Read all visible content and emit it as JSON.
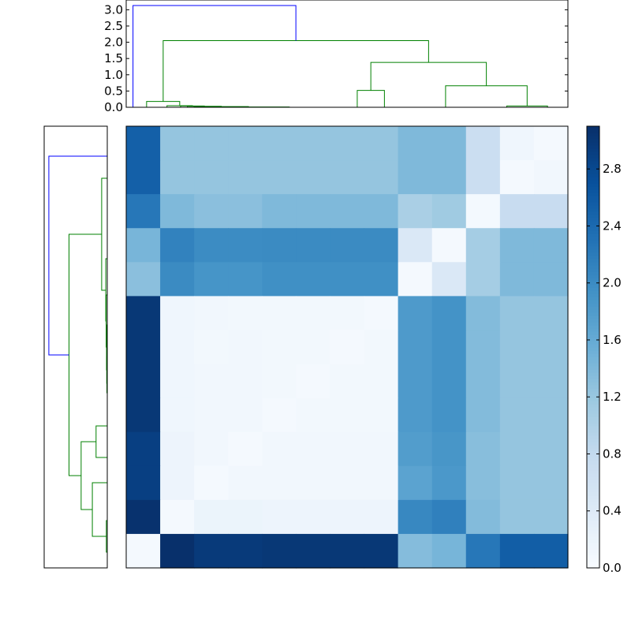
{
  "chart_data": [
    {
      "type": "heatmap",
      "title": "",
      "xlabel": "",
      "ylabel": "",
      "rows": 13,
      "cols": 13,
      "values": [
        [
          2.53,
          1.23,
          1.23,
          1.23,
          1.23,
          1.23,
          1.23,
          1.23,
          1.4,
          1.4,
          0.7,
          0.12,
          0.05
        ],
        [
          2.53,
          1.23,
          1.23,
          1.23,
          1.23,
          1.23,
          1.23,
          1.23,
          1.4,
          1.4,
          0.7,
          0.05,
          0.1
        ],
        [
          2.25,
          1.4,
          1.31,
          1.31,
          1.4,
          1.4,
          1.4,
          1.4,
          1.05,
          1.14,
          0.06,
          0.75,
          0.75
        ],
        [
          1.45,
          2.12,
          2.01,
          2.01,
          2.02,
          2.02,
          2.02,
          2.02,
          0.45,
          0.05,
          1.09,
          1.4,
          1.4
        ],
        [
          1.31,
          2.02,
          1.9,
          1.9,
          1.96,
          1.96,
          1.96,
          1.96,
          0.05,
          0.45,
          1.09,
          1.4,
          1.4
        ],
        [
          3.01,
          0.12,
          0.1,
          0.08,
          0.08,
          0.08,
          0.08,
          0.04,
          1.82,
          1.92,
          1.37,
          1.23,
          1.23
        ],
        [
          3.01,
          0.12,
          0.08,
          0.1,
          0.08,
          0.08,
          0.04,
          0.08,
          1.82,
          1.92,
          1.37,
          1.23,
          1.23
        ],
        [
          3.01,
          0.12,
          0.1,
          0.1,
          0.08,
          0.04,
          0.08,
          0.08,
          1.82,
          1.92,
          1.37,
          1.23,
          1.23
        ],
        [
          3.01,
          0.12,
          0.1,
          0.1,
          0.04,
          0.08,
          0.08,
          0.08,
          1.82,
          1.92,
          1.37,
          1.23,
          1.23
        ],
        [
          2.92,
          0.16,
          0.1,
          0.04,
          0.1,
          0.1,
          0.1,
          0.1,
          1.79,
          1.88,
          1.33,
          1.23,
          1.23
        ],
        [
          2.92,
          0.16,
          0.04,
          0.1,
          0.1,
          0.1,
          0.1,
          0.1,
          1.7,
          1.85,
          1.33,
          1.23,
          1.23
        ],
        [
          3.08,
          0.04,
          0.18,
          0.18,
          0.16,
          0.16,
          0.16,
          0.16,
          2.05,
          2.15,
          1.37,
          1.23,
          1.23
        ],
        [
          0.04,
          3.1,
          2.98,
          2.98,
          3.01,
          3.01,
          3.01,
          3.01,
          1.35,
          1.46,
          2.25,
          2.55,
          2.55
        ]
      ],
      "colorbar": {
        "colormap": "Blues",
        "vmin": 0.0,
        "vmax": 3.1,
        "ticks": [
          "0.0",
          "0.4",
          "0.8",
          "1.2",
          "1.6",
          "2.0",
          "2.4",
          "2.8"
        ]
      }
    },
    {
      "type": "dendrogram",
      "orientation": "top",
      "title": "",
      "ylim": [
        0,
        3.3
      ],
      "yticks": [
        "0.0",
        "0.5",
        "1.0",
        "1.5",
        "2.0",
        "2.5",
        "3.0"
      ],
      "links": [
        {
          "xa": 12.0,
          "xb": 24.0,
          "ha": 0,
          "hb": 0,
          "h": 0.01,
          "color": "#008000"
        },
        {
          "xa": 10.0,
          "xb": 18.0,
          "ha": 0,
          "hb": 0.01,
          "h": 0.02,
          "color": "#008000"
        },
        {
          "xa": 9.0,
          "xb": 14.0,
          "ha": 0,
          "hb": 0.02,
          "h": 0.03,
          "color": "#008000"
        },
        {
          "xa": 8.0,
          "xb": 11.5,
          "ha": 0,
          "hb": 0.03,
          "h": 0.04,
          "color": "#008000"
        },
        {
          "xa": 6.0,
          "xb": 9.75,
          "ha": 0,
          "hb": 0.04,
          "h": 0.05,
          "color": "#008000"
        },
        {
          "xa": 3.0,
          "xb": 7.875,
          "ha": 0,
          "hb": 0.05,
          "h": 0.18,
          "color": "#008000"
        },
        {
          "xa": 56.0,
          "xb": 62.0,
          "ha": 0,
          "hb": 0,
          "h": 0.04,
          "color": "#008000"
        },
        {
          "xa": 47.0,
          "xb": 59.0,
          "ha": 0,
          "hb": 0.04,
          "h": 0.66,
          "color": "#008000"
        },
        {
          "xa": 34.0,
          "xb": 38.0,
          "ha": 0,
          "hb": 0,
          "h": 0.52,
          "color": "#008000"
        },
        {
          "xa": 36.0,
          "xb": 53.0,
          "ha": 0.52,
          "hb": 0.66,
          "h": 1.38,
          "color": "#008000"
        },
        {
          "xa": 5.44,
          "xb": 44.5,
          "ha": 0.18,
          "hb": 1.38,
          "h": 2.05,
          "color": "#008000"
        },
        {
          "xa": 1.0,
          "xb": 24.97,
          "ha": 0,
          "hb": 2.05,
          "h": 3.13,
          "color": "#0000ff"
        }
      ]
    },
    {
      "type": "dendrogram",
      "orientation": "left",
      "title": "",
      "links": [
        {
          "ya": 11.1,
          "yb": 12.3,
          "ha": 0,
          "hb": 0,
          "h": 0.02,
          "color": "#008000"
        },
        {
          "ya": 11.7,
          "yb": 13.4,
          "ha": 0.02,
          "hb": 0,
          "h": 0.03,
          "color": "#008000"
        },
        {
          "ya": 12.55,
          "yb": 15.4,
          "ha": 0.03,
          "hb": 0,
          "h": 0.04,
          "color": "#008000"
        },
        {
          "ya": 14.0,
          "yb": 17.3,
          "ha": 0.04,
          "hb": 0,
          "h": 0.06,
          "color": "#008000"
        },
        {
          "ya": 15.65,
          "yb": 19.6,
          "ha": 0.06,
          "hb": 0,
          "h": 0.08,
          "color": "#008000"
        },
        {
          "ya": 17.6,
          "yb": 24.7,
          "ha": 0.08,
          "hb": 0,
          "h": 0.3,
          "color": "#008000"
        },
        {
          "ya": 1.0,
          "yb": 3.0,
          "ha": 0,
          "hb": 0,
          "h": 0.05,
          "color": "#008000"
        },
        {
          "ya": 2.0,
          "yb": 5.4,
          "ha": 0.05,
          "hb": 0,
          "h": 0.8,
          "color": "#008000"
        },
        {
          "ya": 7.0,
          "yb": 9.0,
          "ha": 0,
          "hb": 0,
          "h": 0.6,
          "color": "#008000"
        },
        {
          "ya": 3.7,
          "yb": 8.0,
          "ha": 0.8,
          "hb": 0.6,
          "h": 1.4,
          "color": "#008000"
        },
        {
          "ya": 5.85,
          "yb": 21.15,
          "ha": 1.4,
          "hb": 0.3,
          "h": 2.05,
          "color": "#008000"
        },
        {
          "ya": 13.5,
          "yb": 26.1,
          "ha": 2.05,
          "hb": 0,
          "h": 3.13,
          "color": "#0000ff"
        }
      ]
    }
  ]
}
